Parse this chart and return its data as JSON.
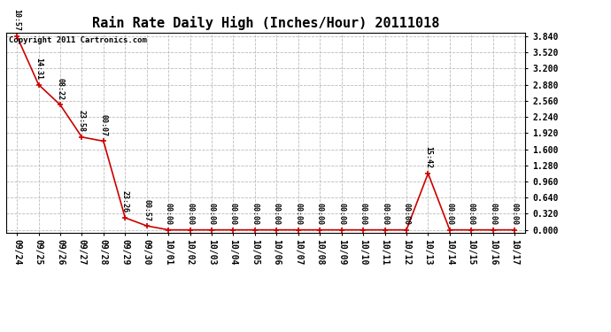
{
  "title": "Rain Rate Daily High (Inches/Hour) 20111018",
  "copyright": "Copyright 2011 Cartronics.com",
  "x_labels": [
    "09/24",
    "09/25",
    "09/26",
    "09/27",
    "09/28",
    "09/29",
    "09/30",
    "10/01",
    "10/02",
    "10/03",
    "10/04",
    "10/05",
    "10/06",
    "10/07",
    "10/08",
    "10/09",
    "10/10",
    "10/11",
    "10/12",
    "10/13",
    "10/14",
    "10/15",
    "10/16",
    "10/17"
  ],
  "y_values": [
    3.84,
    2.88,
    2.48,
    1.84,
    1.76,
    0.24,
    0.08,
    0.0,
    0.0,
    0.0,
    0.0,
    0.0,
    0.0,
    0.0,
    0.0,
    0.0,
    0.0,
    0.0,
    0.0,
    1.12,
    0.0,
    0.0,
    0.0,
    0.0
  ],
  "point_labels": [
    "10:57",
    "14:31",
    "08:22",
    "23:58",
    "00:07",
    "23:26",
    "00:57",
    "00:00",
    "00:00",
    "00:00",
    "00:00",
    "00:00",
    "00:00",
    "00:00",
    "00:00",
    "00:00",
    "00:00",
    "00:00",
    "00:00",
    "15:42",
    "00:00",
    "00:00",
    "00:00",
    "00:00"
  ],
  "y_ticks": [
    0.0,
    0.32,
    0.64,
    0.96,
    1.28,
    1.6,
    1.92,
    2.24,
    2.56,
    2.88,
    3.2,
    3.52,
    3.84
  ],
  "ylim": [
    0.0,
    3.84
  ],
  "line_color": "#cc0000",
  "marker_color": "#cc0000",
  "background_color": "#ffffff",
  "grid_color": "#bbbbbb",
  "title_fontsize": 11,
  "label_fontsize": 7,
  "annot_fontsize": 6
}
